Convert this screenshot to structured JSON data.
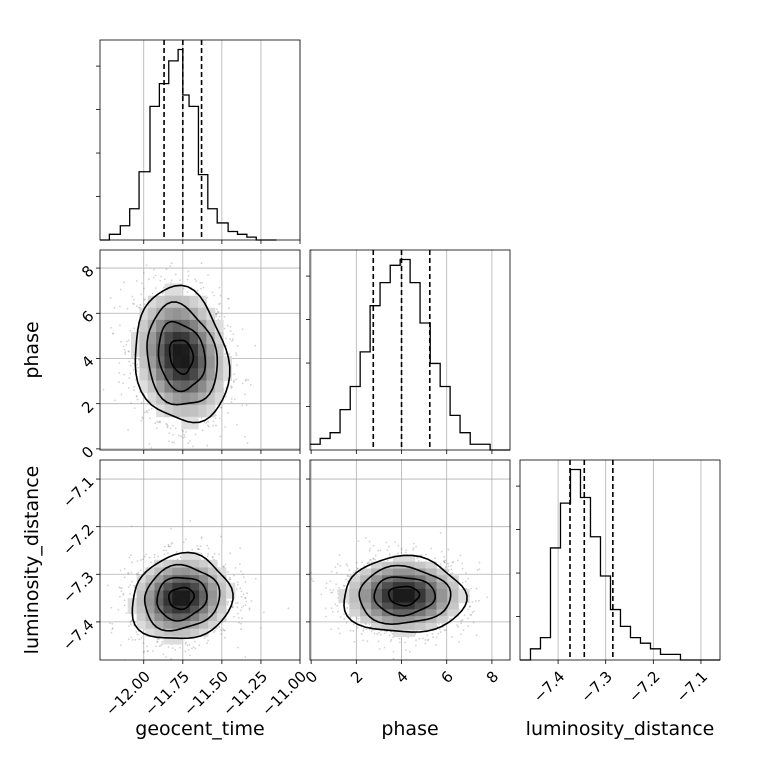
{
  "chart_data": {
    "type": "corner",
    "parameters": [
      "geocent_time",
      "phase",
      "luminosity_distance"
    ],
    "axis_labels": {
      "x": [
        "geocent_time",
        "phase",
        "luminosity_distance"
      ],
      "y": [
        "",
        "phase",
        "luminosity_distance"
      ]
    },
    "ranges": {
      "geocent_time": [
        -12.28,
        -11.0
      ],
      "phase": [
        -0.05,
        8.8
      ],
      "luminosity_distance": [
        -7.48,
        -7.06
      ]
    },
    "ticks": {
      "geocent_time": {
        "values": [
          -12.0,
          -11.75,
          -11.5,
          -11.25,
          -11.0
        ],
        "labels": [
          "−12.00",
          "−11.75",
          "−11.50",
          "−11.25",
          "−11.00"
        ]
      },
      "phase": {
        "values": [
          0,
          2,
          4,
          6,
          8
        ],
        "labels": [
          "0",
          "2",
          "4",
          "6",
          "8"
        ]
      },
      "luminosity_distance": {
        "values": [
          -7.4,
          -7.3,
          -7.2,
          -7.1
        ],
        "labels": [
          "−7.4",
          "−7.3",
          "−7.2",
          "−7.1"
        ]
      }
    },
    "marginals": [
      {
        "parameter": "geocent_time",
        "bin_edges": [
          -12.28,
          -12.22,
          -12.15,
          -12.09,
          -12.03,
          -11.96,
          -11.9,
          -11.84,
          -11.78,
          -11.75,
          -11.71,
          -11.65,
          -11.59,
          -11.53,
          -11.46,
          -11.4,
          -11.34,
          -11.28,
          -11.21,
          -11.15
        ],
        "counts": [
          0,
          2,
          5,
          11,
          24,
          47,
          55,
          63,
          67,
          51,
          47,
          23,
          11,
          6,
          3,
          2,
          1,
          0,
          0
        ],
        "quantiles": [
          -11.87,
          -11.75,
          -11.63
        ]
      },
      {
        "parameter": "phase",
        "bin_edges": [
          -0.05,
          0.4,
          0.84,
          1.28,
          1.73,
          2.17,
          2.61,
          3.05,
          3.5,
          3.94,
          4.38,
          4.82,
          5.27,
          5.71,
          6.15,
          6.59,
          7.04,
          7.48,
          7.92,
          8.36,
          8.8
        ],
        "counts": [
          1,
          2,
          3,
          7,
          11,
          17,
          25,
          29,
          32,
          33,
          29,
          22,
          15,
          11,
          6,
          3,
          1,
          1,
          0,
          0
        ],
        "quantiles": [
          2.75,
          4.0,
          5.25
        ]
      },
      {
        "parameter": "luminosity_distance",
        "bin_edges": [
          -7.48,
          -7.458,
          -7.437,
          -7.416,
          -7.395,
          -7.374,
          -7.353,
          -7.332,
          -7.311,
          -7.29,
          -7.269,
          -7.248,
          -7.227,
          -7.206,
          -7.185,
          -7.164,
          -7.143,
          -7.122,
          -7.101,
          -7.08,
          -7.06
        ],
        "counts": [
          0,
          2,
          4,
          20,
          28,
          34,
          29,
          22,
          15,
          9,
          6,
          4,
          3,
          2,
          1,
          1,
          0,
          0,
          0,
          0
        ],
        "quantiles": [
          -7.375,
          -7.345,
          -7.285
        ]
      }
    ],
    "joint": [
      {
        "x": "geocent_time",
        "y": "phase",
        "center": [
          -11.76,
          4.1
        ],
        "spread": [
          0.15,
          1.5
        ],
        "correlation": -0.15,
        "contour_levels_sigma": [
          0.5,
          1.0,
          1.5,
          2.0
        ]
      },
      {
        "x": "geocent_time",
        "y": "luminosity_distance",
        "center": [
          -11.76,
          -7.35
        ],
        "spread": [
          0.16,
          0.045
        ],
        "correlation": 0.1,
        "contour_levels_sigma": [
          0.5,
          1.0,
          1.5,
          2.0
        ]
      },
      {
        "x": "phase",
        "y": "luminosity_distance",
        "center": [
          4.1,
          -7.345
        ],
        "spread": [
          1.35,
          0.04
        ],
        "correlation": 0.0,
        "contour_levels_sigma": [
          0.5,
          1.0,
          1.5,
          2.0
        ]
      }
    ],
    "grid": true,
    "line_color": "#000000",
    "sample_color": "#7f7f7f",
    "density_colormap": "greys"
  }
}
